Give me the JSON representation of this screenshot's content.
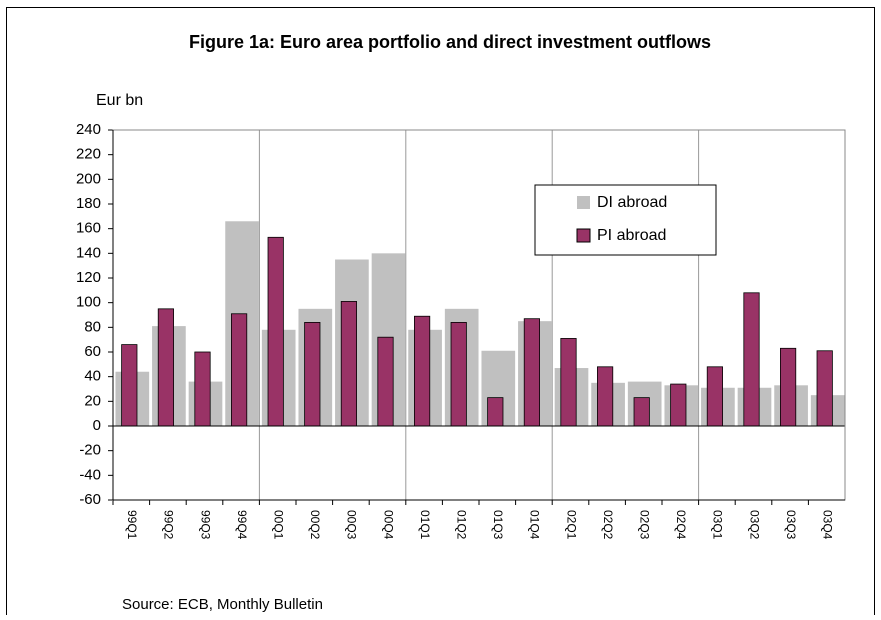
{
  "chart_data": {
    "type": "bar",
    "title": "Figure 1a: Euro area portfolio and direct investment outflows",
    "y_label": "Eur bn",
    "source": "Source: ECB, Monthly Bulletin",
    "categories": [
      "99Q1",
      "99Q2",
      "99Q3",
      "99Q4",
      "00Q1",
      "00Q2",
      "00Q3",
      "00Q4",
      "01Q1",
      "01Q2",
      "01Q3",
      "01Q4",
      "02Q1",
      "02Q2",
      "02Q3",
      "02Q4",
      "03Q1",
      "03Q2",
      "03Q3",
      "03Q4"
    ],
    "series": [
      {
        "name": "DI abroad",
        "color": "#c0c0c0",
        "values": [
          44,
          81,
          36,
          166,
          78,
          95,
          135,
          140,
          78,
          95,
          61,
          85,
          47,
          35,
          36,
          33,
          31,
          31,
          33,
          25
        ]
      },
      {
        "name": "PI abroad",
        "color": "#993366",
        "values": [
          66,
          95,
          60,
          91,
          153,
          84,
          101,
          72,
          89,
          84,
          23,
          87,
          71,
          48,
          23,
          34,
          48,
          108,
          63,
          61
        ]
      }
    ],
    "ylim": [
      -60,
      240
    ],
    "yticks": [
      -60,
      -40,
      -20,
      0,
      20,
      40,
      60,
      80,
      100,
      120,
      140,
      160,
      180,
      200,
      220,
      240
    ],
    "legend": "upper right"
  }
}
